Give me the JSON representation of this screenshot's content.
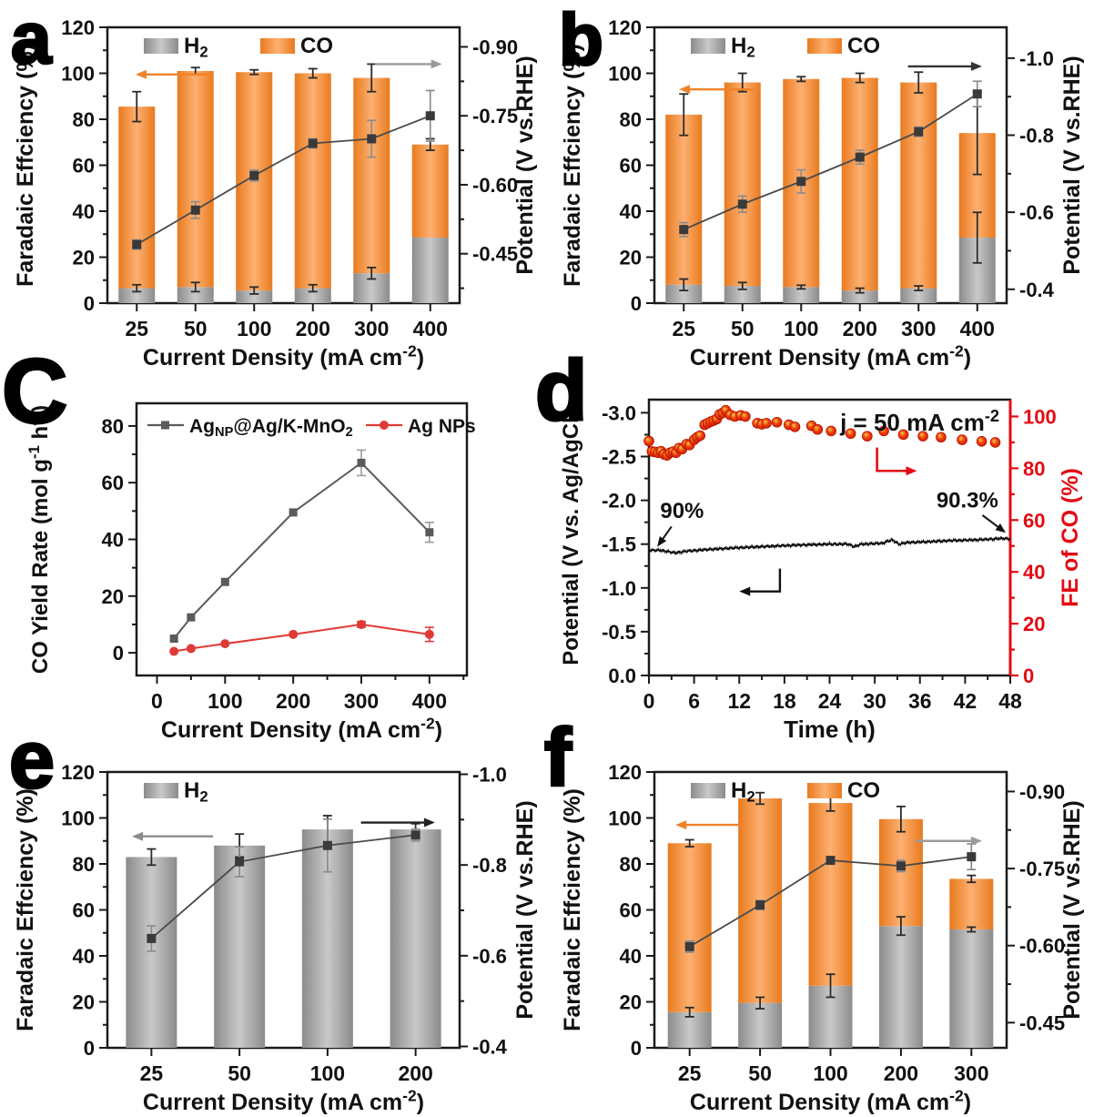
{
  "figure": {
    "background": "#ffffff"
  },
  "colors": {
    "orange": "#f08228",
    "orange_dark": "#e87a1e",
    "orange_light": "#fdb071",
    "gray_bar": "#8b8b8b",
    "gray_bar_light": "#c9c9c9",
    "line_dark": "#3c3c3c",
    "err_dark": "#2b2b2b",
    "err_gray": "#8c8c8c",
    "red": "#e30b13",
    "black": "#111111"
  },
  "chart_data": [
    {
      "letter": "a",
      "type": "bar_line",
      "left_axis": {
        "label": "Faradaic Effciency (%)",
        "min": 0,
        "max": 120,
        "major_step": 20,
        "minor_step": 10
      },
      "right_axis": {
        "label": "Potential (V vs.RHE)",
        "v_at_bottom": -0.3425,
        "v_at_top": -0.9425,
        "ticks": [
          {
            "v": -0.45,
            "l": "-0.45"
          },
          {
            "v": -0.6,
            "l": "-0.60"
          },
          {
            "v": -0.75,
            "l": "-0.75"
          },
          {
            "v": -0.9,
            "l": "-0.90"
          }
        ]
      },
      "x_axis": {
        "label_segs": [
          {
            "t": "Current Density (mA cm"
          },
          {
            "t": "-2",
            "s": "sup"
          },
          {
            "t": ")"
          }
        ],
        "categories": [
          "25",
          "50",
          "100",
          "200",
          "300",
          "400"
        ]
      },
      "legend": [
        {
          "swatch": "gray",
          "segs": [
            {
              "t": "H"
            },
            {
              "t": "2",
              "s": "sub"
            }
          ]
        },
        {
          "swatch": "orange",
          "segs": [
            {
              "t": "CO"
            }
          ]
        }
      ],
      "bars": {
        "h2": [
          6.5,
          7,
          5.5,
          6.5,
          13,
          28.5
        ],
        "co": [
          79,
          94,
          95,
          93.5,
          85,
          40.5
        ],
        "h2_err": [
          1.5,
          2,
          1.5,
          1.5,
          2.5,
          0
        ],
        "total_err": [
          6.5,
          1.5,
          1,
          2,
          6,
          2.5
        ]
      },
      "line": {
        "potential": [
          -0.47,
          -0.545,
          -0.62,
          -0.69,
          -0.7,
          -0.75
        ],
        "err": [
          0.01,
          0.018,
          0.012,
          0.01,
          0.04,
          0.055
        ]
      },
      "arrows": {
        "left": {
          "color": "#f08228",
          "fe": 99.5,
          "x0": 0.08,
          "x1": 0.3
        },
        "right": {
          "color": "#9a9a9a",
          "fe": 104,
          "x0": 0.76,
          "x1": 0.95
        }
      }
    },
    {
      "letter": "b",
      "type": "bar_line",
      "left_axis": {
        "label": "Faradaic Effciency (%)",
        "min": 0,
        "max": 120,
        "major_step": 20,
        "minor_step": 10
      },
      "right_axis": {
        "label": "Potential (V vs.RHE)",
        "v_at_bottom": -0.364,
        "v_at_top": -1.08,
        "ticks": [
          {
            "v": -0.4,
            "l": "-0.4"
          },
          {
            "v": -0.6,
            "l": "-0.6"
          },
          {
            "v": -0.8,
            "l": "-0.8"
          },
          {
            "v": -1.0,
            "l": "-1.0"
          }
        ]
      },
      "x_axis": {
        "label_segs": [
          {
            "t": "Current Density (mA cm"
          },
          {
            "t": "-2",
            "s": "sup"
          },
          {
            "t": ")"
          }
        ],
        "categories": [
          "25",
          "50",
          "100",
          "200",
          "300",
          "400"
        ]
      },
      "legend": [
        {
          "swatch": "gray",
          "segs": [
            {
              "t": "H"
            },
            {
              "t": "2",
              "s": "sub"
            }
          ]
        },
        {
          "swatch": "orange",
          "segs": [
            {
              "t": "CO"
            }
          ]
        }
      ],
      "bars": {
        "h2": [
          8,
          7.5,
          7,
          5.5,
          6.5,
          28.5
        ],
        "co": [
          74,
          88.5,
          90.5,
          92.5,
          89.5,
          45.5
        ],
        "h2_err": [
          2.5,
          1.5,
          0.8,
          1,
          1,
          11
        ],
        "total_err": [
          9,
          4,
          1,
          2,
          4.5,
          18
        ]
      },
      "line": {
        "potential": [
          -0.555,
          -0.621,
          -0.68,
          -0.743,
          -0.809,
          -0.907
        ],
        "err": [
          0.018,
          0.021,
          0.03,
          0.018,
          0.012,
          0.033
        ]
      },
      "arrows": {
        "left": {
          "color": "#f08228",
          "fe": 93,
          "x0": 0.07,
          "x1": 0.28
        },
        "right": {
          "color": "#333333",
          "fe": 103,
          "x0": 0.72,
          "x1": 0.93
        }
      }
    },
    {
      "letter": "C",
      "type": "xy_line",
      "left_axis": {
        "label_segs": [
          {
            "t": "CO Yield Rate (mol g"
          },
          {
            "t": "-1",
            "s": "sup"
          },
          {
            "t": " h"
          },
          {
            "t": "-1",
            "s": "sup"
          },
          {
            "t": ")"
          }
        ],
        "min": -8,
        "max": 88,
        "ticks": [
          0,
          20,
          40,
          60,
          80
        ],
        "minor": [
          10,
          30,
          50,
          70
        ]
      },
      "x_axis": {
        "label_segs": [
          {
            "t": "Current Density (mA cm"
          },
          {
            "t": "-2",
            "s": "sup"
          },
          {
            "t": ")"
          }
        ],
        "min": -30,
        "max": 455,
        "ticks": [
          0,
          100,
          200,
          300,
          400
        ],
        "minor": [
          50,
          150,
          250,
          350,
          450
        ]
      },
      "series": [
        {
          "segs": [
            {
              "t": "Ag"
            },
            {
              "t": "NP",
              "s": "sub"
            },
            {
              "t": "@Ag/K-MnO"
            },
            {
              "t": "2",
              "s": "sub"
            }
          ],
          "color": "#5a5a5a",
          "marker": "square",
          "x": [
            25,
            50,
            100,
            200,
            300,
            400
          ],
          "y": [
            5,
            12.5,
            25,
            49.5,
            67,
            42.5
          ],
          "err": [
            0,
            0,
            0,
            0,
            4.5,
            3.5
          ]
        },
        {
          "segs": [
            {
              "t": "Ag NPs"
            }
          ],
          "color": "#e03a36",
          "marker": "circle",
          "x": [
            25,
            50,
            100,
            200,
            300,
            400
          ],
          "y": [
            0.5,
            1.5,
            3.2,
            6.5,
            10,
            6.5
          ],
          "err": [
            0,
            0,
            0,
            0,
            1,
            2.5
          ]
        }
      ]
    },
    {
      "letter": "d",
      "type": "stability",
      "left_axis": {
        "label": "Potential (V vs. Ag/AgCl)",
        "bottom": 0,
        "top": -3.15,
        "ticks": [
          {
            "v": 0,
            "l": "0.0"
          },
          {
            "v": -0.5,
            "l": "-0.5"
          },
          {
            "v": -1,
            "l": "-1.0"
          },
          {
            "v": -1.5,
            "l": "-1.5"
          },
          {
            "v": -2,
            "l": "-2.0"
          },
          {
            "v": -2.5,
            "l": "-2.5"
          },
          {
            "v": -3,
            "l": "-3.0"
          }
        ],
        "minor": [
          -0.25,
          -0.75,
          -1.25,
          -1.75,
          -2.25,
          -2.75
        ]
      },
      "right_axis": {
        "label": "FE of CO (%)",
        "bottom": 0,
        "top": 106.5,
        "ticks": [
          0,
          20,
          40,
          60,
          80,
          100
        ],
        "minor": [
          10,
          30,
          50,
          70,
          90
        ],
        "color": "#e30b13"
      },
      "x_axis": {
        "label": "Time (h)",
        "min": 0,
        "max": 48,
        "ticks": [
          0,
          6,
          12,
          18,
          24,
          30,
          36,
          42,
          48
        ],
        "minor": [
          3,
          9,
          15,
          21,
          27,
          33,
          39,
          45
        ]
      },
      "annotation_j": {
        "segs": [
          {
            "t": "j = 50 mA cm"
          },
          {
            "t": "-2",
            "s": "sup"
          }
        ]
      },
      "label_start": "90%",
      "label_end": "90.3%",
      "potential_anchors": [
        [
          0,
          -1.43
        ],
        [
          1.5,
          -1.43
        ],
        [
          3.5,
          -1.4
        ],
        [
          5,
          -1.42
        ],
        [
          8,
          -1.44
        ],
        [
          12,
          -1.46
        ],
        [
          16,
          -1.475
        ],
        [
          20,
          -1.49
        ],
        [
          24,
          -1.5
        ],
        [
          26.5,
          -1.5
        ],
        [
          27.3,
          -1.47
        ],
        [
          28.2,
          -1.5
        ],
        [
          31,
          -1.51
        ],
        [
          32.3,
          -1.55
        ],
        [
          33.2,
          -1.5
        ],
        [
          34.5,
          -1.52
        ],
        [
          36.5,
          -1.525
        ],
        [
          40,
          -1.54
        ],
        [
          44,
          -1.55
        ],
        [
          47,
          -1.565
        ],
        [
          48,
          -1.56
        ]
      ],
      "fe_points": [
        [
          0,
          90.5
        ],
        [
          0.4,
          86.5
        ],
        [
          0.8,
          86.3
        ],
        [
          1.2,
          86
        ],
        [
          1.6,
          86.6
        ],
        [
          2,
          85.4
        ],
        [
          2.4,
          85
        ],
        [
          2.8,
          86
        ],
        [
          3.2,
          86.4
        ],
        [
          3.6,
          86
        ],
        [
          4,
          87.8
        ],
        [
          4.4,
          87.4
        ],
        [
          5,
          89.3
        ],
        [
          5.4,
          89
        ],
        [
          6,
          91
        ],
        [
          6.4,
          92
        ],
        [
          6.8,
          92.6
        ],
        [
          7.4,
          96.8
        ],
        [
          7.8,
          97.4
        ],
        [
          8.2,
          98
        ],
        [
          8.6,
          98.4
        ],
        [
          9,
          99
        ],
        [
          9.4,
          100.8
        ],
        [
          9.8,
          101.4
        ],
        [
          10.2,
          102.4
        ],
        [
          10.8,
          100.6
        ],
        [
          11.4,
          100
        ],
        [
          12.2,
          100.4
        ],
        [
          12.8,
          100
        ],
        [
          14.4,
          97.4
        ],
        [
          15,
          97
        ],
        [
          15.6,
          97.4
        ],
        [
          17,
          97.8
        ],
        [
          18.6,
          96.8
        ],
        [
          19.4,
          96
        ],
        [
          21.6,
          96.4
        ],
        [
          22.4,
          95
        ],
        [
          24.2,
          94.4
        ],
        [
          26.8,
          93.4
        ],
        [
          29,
          92.4
        ],
        [
          31.2,
          94.4
        ],
        [
          33.8,
          93
        ],
        [
          36.4,
          92.4
        ],
        [
          38.8,
          92
        ],
        [
          41.6,
          91
        ],
        [
          44.2,
          90.4
        ],
        [
          46,
          90
        ]
      ]
    },
    {
      "letter": "e",
      "type": "bar_line",
      "left_axis": {
        "label": "Faradaic Effciency (%)",
        "min": 0,
        "max": 120,
        "major_step": 20,
        "minor_step": 10
      },
      "right_axis": {
        "label": "Potential (V vs.RHE)",
        "v_at_bottom": -0.397,
        "v_at_top": -1.005,
        "ticks": [
          {
            "v": -0.4,
            "l": "-0.4"
          },
          {
            "v": -0.6,
            "l": "-0.6"
          },
          {
            "v": -0.8,
            "l": "-0.8"
          },
          {
            "v": -1.0,
            "l": "-1.0"
          }
        ]
      },
      "x_axis": {
        "label_segs": [
          {
            "t": "Current Density (mA cm"
          },
          {
            "t": "-2",
            "s": "sup"
          },
          {
            "t": ")"
          }
        ],
        "categories": [
          "25",
          "50",
          "100",
          "200"
        ]
      },
      "legend": [
        {
          "swatch": "gray",
          "segs": [
            {
              "t": "H"
            },
            {
              "t": "2",
              "s": "sub"
            }
          ]
        }
      ],
      "bars": {
        "h2": [
          83,
          88,
          95,
          95
        ],
        "h2_err": [
          3.5,
          5,
          6,
          2.5
        ]
      },
      "line": {
        "potential": [
          -0.638,
          -0.807,
          -0.843,
          -0.866
        ],
        "err": [
          0.028,
          0.033,
          0.058,
          0.013
        ]
      },
      "arrows": {
        "left": {
          "color": "#8c8c8c",
          "fe": 92,
          "x0": 0.07,
          "x1": 0.3
        },
        "right": {
          "color": "#222222",
          "fe": 98,
          "x0": 0.72,
          "x1": 0.93
        }
      }
    },
    {
      "letter": "f",
      "type": "bar_line",
      "left_axis": {
        "label": "Faradaic Effciency (%)",
        "min": 0,
        "max": 120,
        "major_step": 20,
        "minor_step": 10
      },
      "right_axis": {
        "label": "Potential (V vs.RHE)",
        "v_at_bottom": -0.401,
        "v_at_top": -0.938,
        "ticks": [
          {
            "v": -0.45,
            "l": "-0.45"
          },
          {
            "v": -0.6,
            "l": "-0.60"
          },
          {
            "v": -0.75,
            "l": "-0.75"
          },
          {
            "v": -0.9,
            "l": "-0.90"
          }
        ]
      },
      "x_axis": {
        "label_segs": [
          {
            "t": "Current Density (mA cm"
          },
          {
            "t": "-2",
            "s": "sup"
          },
          {
            "t": ")"
          }
        ],
        "categories": [
          "25",
          "50",
          "100",
          "200",
          "300"
        ]
      },
      "legend": [
        {
          "swatch": "gray",
          "segs": [
            {
              "t": "H"
            },
            {
              "t": "2",
              "s": "sub"
            }
          ]
        },
        {
          "swatch": "orange",
          "segs": [
            {
              "t": "CO"
            }
          ]
        }
      ],
      "bars": {
        "h2": [
          15.5,
          19.5,
          27,
          53,
          51.5
        ],
        "co": [
          73.5,
          89,
          79.5,
          46.5,
          22
        ],
        "h2_err": [
          2,
          2.5,
          5,
          4,
          1
        ],
        "total_err": [
          1.5,
          2.5,
          3.5,
          5.5,
          1.5
        ]
      },
      "line": {
        "potential": [
          -0.598,
          -0.679,
          -0.766,
          -0.755,
          -0.773
        ],
        "err": [
          0.011,
          0.009,
          0.005,
          0.011,
          0.025
        ]
      },
      "arrows": {
        "left": {
          "color": "#f08228",
          "fe": 97,
          "x0": 0.06,
          "x1": 0.26
        },
        "right": {
          "color": "#9a9a9a",
          "fe": 90,
          "x0": 0.74,
          "x1": 0.93
        }
      }
    }
  ]
}
